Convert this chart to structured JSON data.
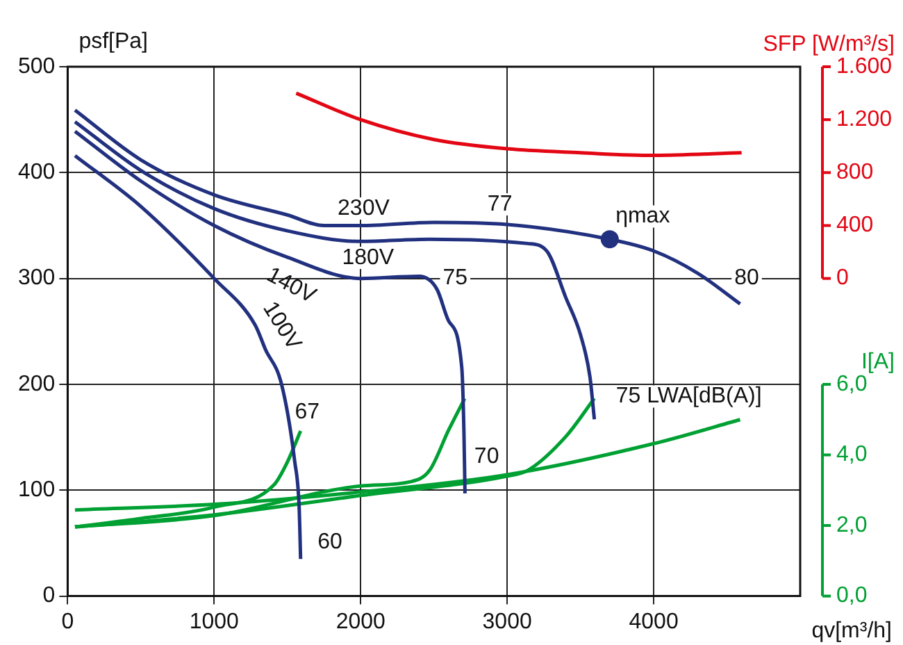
{
  "chart_data": {
    "type": "line",
    "xlabel": "qv[m³/h]",
    "ylabel": "psf[Pa]",
    "y2label": "SFP [W/m³/s]",
    "y3label": "I[A]",
    "xlim": [
      0,
      5000
    ],
    "xticks": [
      0,
      1000,
      2000,
      3000,
      4000
    ],
    "ylim": [
      0,
      500
    ],
    "yticks": [
      0,
      100,
      200,
      300,
      400,
      500
    ],
    "y2lim": [
      -2400,
      1600
    ],
    "y2ticks": [
      0,
      400,
      800,
      {
        "value": 1200,
        "label": "1.200"
      },
      {
        "value": 1600,
        "label": "1.600"
      }
    ],
    "y3lim": [
      0,
      15
    ],
    "y3ticks": [
      {
        "value": 0,
        "label": "0,0"
      },
      {
        "value": 2,
        "label": "2,0"
      },
      {
        "value": 4,
        "label": "4,0"
      },
      {
        "value": 6,
        "label": "6,0"
      }
    ],
    "grid": true,
    "marker": "none",
    "series": [
      {
        "color": "#22317f",
        "x": [
          50,
          500,
          1000,
          1500,
          1750,
          2000,
          2500,
          3000,
          3700,
          4000,
          4300,
          4590
        ],
        "values": [
          459,
          412,
          379,
          360,
          350,
          350,
          353,
          351,
          337,
          326,
          305,
          276
        ]
      },
      {
        "color": "#22317f",
        "x": [
          50,
          500,
          1000,
          1500,
          2000,
          2470,
          3140,
          3270,
          3400,
          3500,
          3565,
          3595
        ],
        "values": [
          448,
          402,
          366,
          345,
          335,
          337,
          333,
          326,
          282,
          247,
          207,
          167
        ]
      },
      {
        "color": "#22317f",
        "x": [
          50,
          500,
          1000,
          1500,
          2000,
          2400,
          2520,
          2600,
          2690,
          2705,
          2712
        ],
        "values": [
          439,
          392,
          350,
          320,
          300,
          302,
          290,
          260,
          216,
          154,
          97
        ]
      },
      {
        "color": "#22317f",
        "x": [
          50,
          500,
          1000,
          1280,
          1350,
          1460,
          1550,
          1580,
          1590
        ],
        "values": [
          416,
          368,
          300,
          256,
          233,
          200,
          127,
          84,
          35
        ]
      },
      {
        "color": "#e30613",
        "axis": "y2",
        "x": [
          1560,
          2000,
          2500,
          3000,
          3500,
          4000,
          4600
        ],
        "values": [
          1400,
          1200,
          1050,
          980,
          950,
          930,
          950
        ]
      },
      {
        "color": "#00a033",
        "axis": "y3",
        "x": [
          50,
          500,
          1000,
          1410,
          1500,
          1590
        ],
        "values": [
          1.96,
          2.2,
          2.52,
          3.16,
          3.8,
          4.68
        ]
      },
      {
        "color": "#00a033",
        "axis": "y3",
        "x": [
          50,
          1000,
          2000,
          2340,
          2470,
          2600,
          2710
        ],
        "values": [
          1.96,
          2.28,
          3.12,
          3.24,
          3.56,
          4.7,
          5.6
        ]
      },
      {
        "color": "#00a033",
        "axis": "y3",
        "x": [
          50,
          1000,
          2000,
          3000,
          3140,
          3400,
          3595
        ],
        "values": [
          1.96,
          2.3,
          2.85,
          3.4,
          3.56,
          4.52,
          5.6
        ]
      },
      {
        "color": "#00a033",
        "axis": "y3",
        "x": [
          50,
          1000,
          2000,
          3000,
          4000,
          4590
        ],
        "values": [
          2.44,
          2.6,
          2.95,
          3.44,
          4.32,
          5.0
        ]
      },
      {
        "type": "scatter",
        "marker": "circle",
        "color": "#22317f",
        "x": [
          3700
        ],
        "values": [
          337
        ]
      }
    ],
    "annotations": [
      "230V",
      "180V",
      "140V",
      "100V",
      "75",
      "77",
      "80",
      "ηmax",
      "67",
      "60",
      "70",
      "75 LWA[dB(A)]"
    ]
  }
}
